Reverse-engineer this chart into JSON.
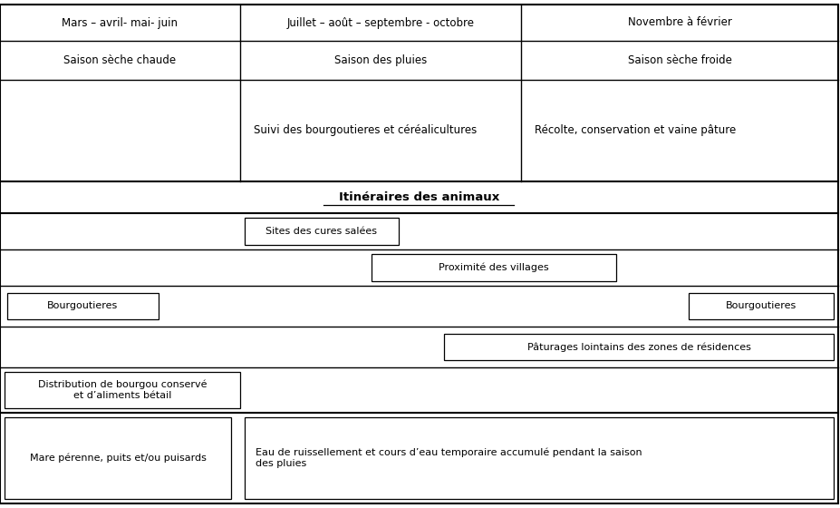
{
  "bg_color": "#ffffff",
  "text_color": "#000000",
  "fig_width": 9.28,
  "fig_height": 5.6,
  "dpi": 100,
  "header_row1": [
    "Mars – avril- mai- juin",
    "Juillet – août – septembre - octobre",
    "Novembre à février"
  ],
  "header_row2": [
    "Saison sèche chaude",
    "Saison des pluies",
    "Saison sèche froide"
  ],
  "row3_col2": "Suivi des bourgoutieres et céréalicultures",
  "row3_col3": "Récolte, conservation et vaine pâture",
  "itineraires_label": "Itinéraires des animaux",
  "label_sites": "Sites des cures salées",
  "label_proximite": "Proximité des villages",
  "label_bourgoutieres": "Bourgoutieres",
  "label_paturages": "Pâturages lointains des zones de résidences",
  "label_distribution": "Distribution de bourgou conservé\net d’aliments bétail",
  "label_mare": "Mare pérenne, puits et/ou puisards",
  "label_eau": "Eau de ruissellement et cours d’eau temporaire accumulé pendant la saison\ndes pluies"
}
